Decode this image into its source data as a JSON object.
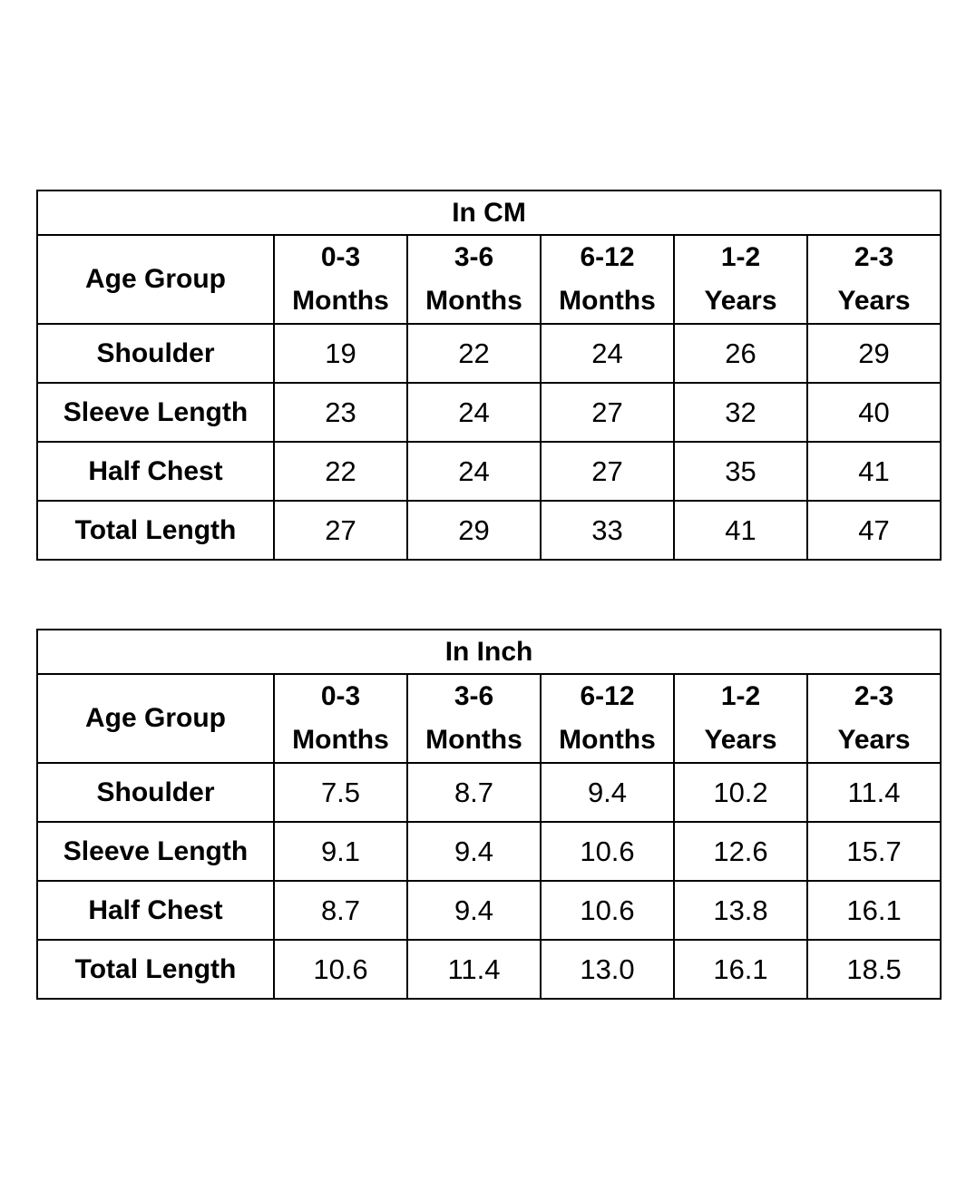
{
  "tables": [
    {
      "title": "In CM",
      "header_label": "Age Group",
      "columns": [
        {
          "line1": "0-3",
          "line2": "Months"
        },
        {
          "line1": "3-6",
          "line2": "Months"
        },
        {
          "line1": "6-12",
          "line2": "Months"
        },
        {
          "line1": "1-2",
          "line2": "Years"
        },
        {
          "line1": "2-3",
          "line2": "Years"
        }
      ],
      "rows": [
        {
          "label": "Shoulder",
          "values": [
            "19",
            "22",
            "24",
            "26",
            "29"
          ]
        },
        {
          "label": "Sleeve Length",
          "values": [
            "23",
            "24",
            "27",
            "32",
            "40"
          ]
        },
        {
          "label": "Half Chest",
          "values": [
            "22",
            "24",
            "27",
            "35",
            "41"
          ]
        },
        {
          "label": "Total Length",
          "values": [
            "27",
            "29",
            "33",
            "41",
            "47"
          ]
        }
      ]
    },
    {
      "title": "In Inch",
      "header_label": "Age Group",
      "columns": [
        {
          "line1": "0-3",
          "line2": "Months"
        },
        {
          "line1": "3-6",
          "line2": "Months"
        },
        {
          "line1": "6-12",
          "line2": "Months"
        },
        {
          "line1": "1-2",
          "line2": "Years"
        },
        {
          "line1": "2-3",
          "line2": "Years"
        }
      ],
      "rows": [
        {
          "label": "Shoulder",
          "values": [
            "7.5",
            "8.7",
            "9.4",
            "10.2",
            "11.4"
          ]
        },
        {
          "label": "Sleeve Length",
          "values": [
            "9.1",
            "9.4",
            "10.6",
            "12.6",
            "15.7"
          ]
        },
        {
          "label": "Half Chest",
          "values": [
            "8.7",
            "9.4",
            "10.6",
            "13.8",
            "16.1"
          ]
        },
        {
          "label": "Total Length",
          "values": [
            "10.6",
            "11.4",
            "13.0",
            "16.1",
            "18.5"
          ]
        }
      ]
    }
  ]
}
